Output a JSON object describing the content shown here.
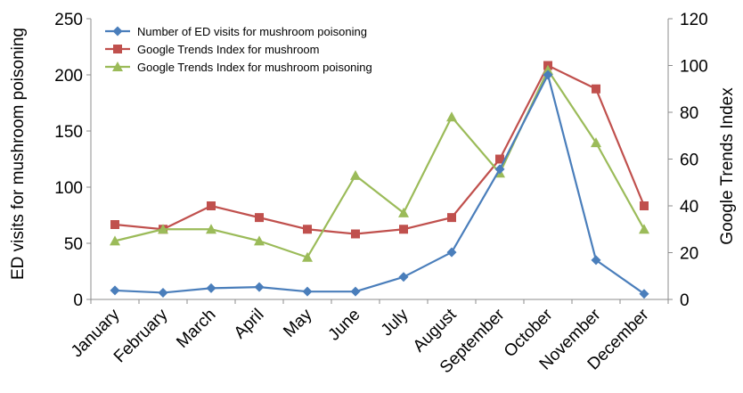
{
  "chart_data": {
    "type": "line",
    "categories": [
      "January",
      "February",
      "March",
      "April",
      "May",
      "June",
      "July",
      "August",
      "September",
      "October",
      "November",
      "December"
    ],
    "ylabel": "ED visits for mushroom poisoning",
    "y2label": "Google Trends Index",
    "ylim": [
      0,
      250
    ],
    "y2lim": [
      0,
      120
    ],
    "yticks": [
      0,
      50,
      100,
      150,
      200,
      250
    ],
    "y2ticks": [
      0,
      20,
      40,
      60,
      80,
      100,
      120
    ],
    "grid": false,
    "legend_position": "top-left",
    "series": [
      {
        "name": "Number of ED visits for mushroom poisoning",
        "axis": "left",
        "color": "#4a7ebb",
        "marker": "diamond",
        "values": [
          8,
          6,
          10,
          11,
          7,
          7,
          20,
          42,
          116,
          200,
          35,
          5
        ]
      },
      {
        "name": "Google Trends Index for mushroom",
        "axis": "right",
        "color": "#c0504d",
        "marker": "square",
        "values": [
          32,
          30,
          40,
          35,
          30,
          28,
          30,
          35,
          60,
          100,
          90,
          40
        ]
      },
      {
        "name": "Google Trends Index for mushroom poisoning",
        "axis": "right",
        "color": "#9bbb59",
        "marker": "triangle",
        "values": [
          25,
          30,
          30,
          25,
          18,
          53,
          37,
          78,
          54,
          98,
          67,
          30
        ]
      }
    ]
  }
}
